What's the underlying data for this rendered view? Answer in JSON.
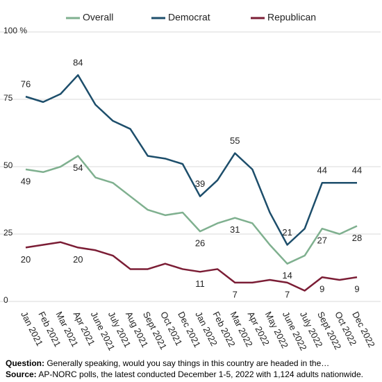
{
  "chart_data": {
    "type": "line",
    "categories": [
      "Jan 2021",
      "Feb 2021",
      "Mar 2021",
      "Apr 2021",
      "June 2021",
      "July 2021",
      "Aug 2021",
      "Sept 2021",
      "Oct 2021",
      "Dec 2021",
      "Jan 2022",
      "Feb 2022",
      "Mar 2022",
      "Apr 2022",
      "May 2022",
      "June 2022",
      "July 2022",
      "Sept 2022",
      "Oct 2022",
      "Dec 2022"
    ],
    "series": [
      {
        "name": "Overall",
        "color": "#7fb08f",
        "values": [
          49,
          48,
          50,
          54,
          46,
          44,
          39,
          34,
          32,
          33,
          26,
          29,
          31,
          29,
          21,
          14,
          17,
          27,
          25,
          28
        ],
        "value_labels": [
          "49",
          null,
          null,
          "54",
          null,
          null,
          null,
          null,
          null,
          null,
          "26",
          null,
          "31",
          null,
          null,
          "14",
          null,
          "27",
          null,
          "28"
        ]
      },
      {
        "name": "Democrat",
        "color": "#1d4e6b",
        "values": [
          76,
          74,
          77,
          84,
          73,
          67,
          64,
          54,
          53,
          51,
          39,
          45,
          55,
          49,
          33,
          21,
          27,
          44,
          44,
          44
        ],
        "value_labels": [
          "76",
          null,
          null,
          "84",
          null,
          null,
          null,
          null,
          null,
          null,
          "39",
          null,
          "55",
          null,
          null,
          "21",
          null,
          "44",
          null,
          "44"
        ]
      },
      {
        "name": "Republican",
        "color": "#7b1d35",
        "values": [
          20,
          21,
          22,
          20,
          19,
          17,
          12,
          12,
          14,
          12,
          11,
          12,
          7,
          7,
          8,
          7,
          4,
          9,
          8,
          9
        ],
        "value_labels": [
          "20",
          null,
          null,
          "20",
          null,
          null,
          null,
          null,
          null,
          null,
          "11",
          null,
          "7",
          null,
          null,
          "7",
          null,
          "9",
          null,
          "9"
        ]
      }
    ],
    "ylim": [
      0,
      100
    ],
    "yticks": [
      0,
      25,
      50,
      75,
      {
        "value": 100,
        "label": "100 %"
      }
    ],
    "grid": true,
    "footer": {
      "question": {
        "label": "Question:",
        "text": "Generally speaking, would you say things in this country are headed in the…"
      },
      "source": {
        "label": "Source:",
        "text": "AP-NORC polls, the latest conducted December 1-5, 2022 with 1,124 adults nationwide."
      }
    }
  }
}
